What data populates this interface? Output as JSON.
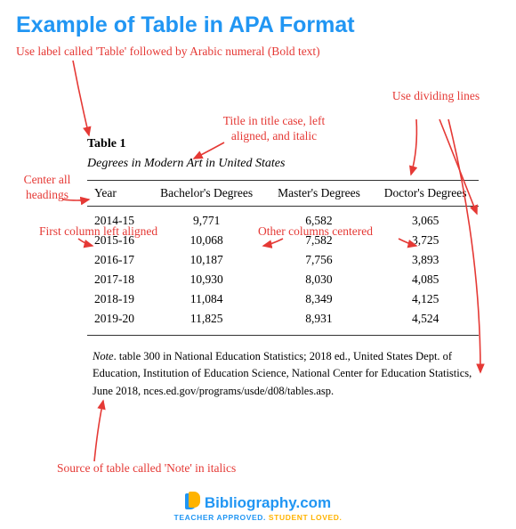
{
  "title": "Example of Table in APA Format",
  "annotations": {
    "label": "Use label called 'Table' followed by Arabic numeral (Bold text)",
    "titlecase": "Title in title case, left aligned, and italic",
    "dividing": "Use dividing lines",
    "centerhead": "Center all headings",
    "firstcol": "First column left aligned",
    "othercol": "Other columns centered",
    "source": "Source of table called 'Note' in italics"
  },
  "table": {
    "label": "Table 1",
    "caption": "Degrees in Modern Art in United States",
    "headers": [
      "Year",
      "Bachelor's Degrees",
      "Master's Degrees",
      "Doctor's Degrees"
    ],
    "rows": [
      [
        "2014-15",
        "9,771",
        "6,582",
        "3,065"
      ],
      [
        "2015-16",
        "10,068",
        "7,582",
        "3,725"
      ],
      [
        "2016-17",
        "10,187",
        "7,756",
        "3,893"
      ],
      [
        "2017-18",
        "10,930",
        "8,030",
        "4,085"
      ],
      [
        "2018-19",
        "11,084",
        "8,349",
        "4,125"
      ],
      [
        "2019-20",
        "11,825",
        "8,931",
        "4,524"
      ]
    ],
    "note_label": "Note",
    "note": ". table 300 in National Education Statistics; 2018 ed., United States Dept. of Education, Institution of Education Science, National Center for Education Statistics, June 2018, nces.ed.gov/programs/usde/d08/tables.asp."
  },
  "footer": {
    "brand": "Bibliography.com",
    "tag1": "TEACHER APPROVED. ",
    "tag2": "STUDENT LOVED."
  },
  "colors": {
    "annotation": "#e53935",
    "title": "#2196f3"
  }
}
